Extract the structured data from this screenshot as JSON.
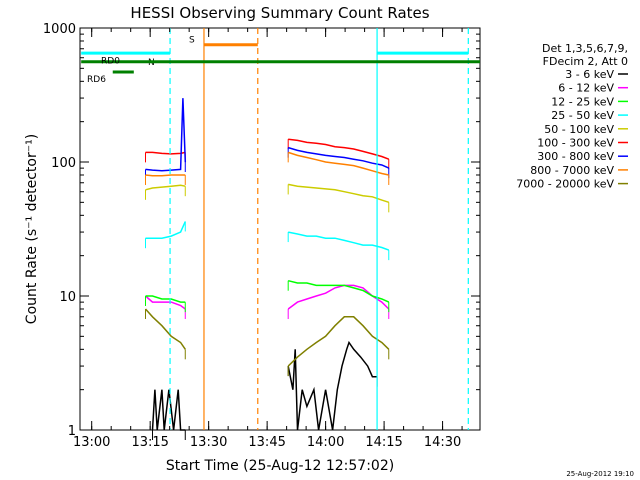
{
  "chart_data": {
    "type": "line",
    "title": "HESSI Observing Summary Count Rates",
    "ylabel": "Count Rate (s⁻¹ detector⁻¹)",
    "xlabel": "Start Time (25-Aug-12 12:57:02)",
    "yscale": "log",
    "ylim": [
      1,
      1000
    ],
    "xlim_min_utc": [
      12.95,
      14.66
    ],
    "x_ticks": [
      {
        "v": 13.0,
        "label": "13:00"
      },
      {
        "v": 13.25,
        "label": "13:15"
      },
      {
        "v": 13.5,
        "label": "13:30"
      },
      {
        "v": 13.75,
        "label": "13:45"
      },
      {
        "v": 14.0,
        "label": "14:00"
      },
      {
        "v": 14.25,
        "label": "14:15"
      },
      {
        "v": 14.5,
        "label": "14:30"
      }
    ],
    "y_ticks": [
      {
        "v": 1,
        "label": "1"
      },
      {
        "v": 10,
        "label": "10"
      },
      {
        "v": 100,
        "label": "100"
      },
      {
        "v": 1000,
        "label": "1000"
      }
    ],
    "legend": {
      "position": "top-right, outside plot",
      "header": [
        "Det 1,3,5,6,7,9,",
        "FDecim 2, Att 0"
      ]
    },
    "series": [
      {
        "name": "3 - 6 keV",
        "color": "#000000",
        "segments": [
          {
            "points": [
              [
                13.26,
                1
              ],
              [
                13.27,
                2
              ],
              [
                13.28,
                1
              ],
              [
                13.3,
                2
              ],
              [
                13.31,
                1
              ],
              [
                13.33,
                2
              ],
              [
                13.35,
                1
              ],
              [
                13.37,
                2
              ],
              [
                13.38,
                1
              ],
              [
                13.4,
                1
              ]
            ]
          },
          {
            "points": [
              [
                13.84,
                3
              ],
              [
                13.86,
                2
              ],
              [
                13.87,
                4
              ],
              [
                13.88,
                1
              ],
              [
                13.9,
                2
              ],
              [
                13.92,
                1.5
              ],
              [
                13.95,
                2
              ],
              [
                13.97,
                1
              ],
              [
                14.0,
                2
              ],
              [
                14.03,
                1
              ],
              [
                14.05,
                2
              ],
              [
                14.07,
                3
              ],
              [
                14.09,
                4
              ],
              [
                14.1,
                4.5
              ],
              [
                14.12,
                4
              ],
              [
                14.15,
                3.5
              ],
              [
                14.18,
                3
              ],
              [
                14.2,
                2.5
              ],
              [
                14.22,
                2.5
              ]
            ]
          }
        ]
      },
      {
        "name": "6 - 12 keV",
        "color": "#ff00ff",
        "segments": [
          {
            "points": [
              [
                13.23,
                10
              ],
              [
                13.26,
                9
              ],
              [
                13.3,
                9
              ],
              [
                13.34,
                9
              ],
              [
                13.38,
                8.5
              ],
              [
                13.4,
                8
              ]
            ]
          },
          {
            "points": [
              [
                13.84,
                8
              ],
              [
                13.88,
                9
              ],
              [
                13.92,
                9.5
              ],
              [
                13.96,
                10
              ],
              [
                14.0,
                10.5
              ],
              [
                14.04,
                11.5
              ],
              [
                14.08,
                12
              ],
              [
                14.12,
                12
              ],
              [
                14.16,
                11.5
              ],
              [
                14.2,
                10
              ],
              [
                14.24,
                9
              ],
              [
                14.27,
                8
              ]
            ]
          }
        ]
      },
      {
        "name": "12 - 25 keV",
        "color": "#00ff00",
        "segments": [
          {
            "points": [
              [
                13.23,
                10
              ],
              [
                13.26,
                10
              ],
              [
                13.3,
                9.5
              ],
              [
                13.34,
                9.5
              ],
              [
                13.38,
                9
              ],
              [
                13.4,
                9
              ]
            ]
          },
          {
            "points": [
              [
                13.84,
                13
              ],
              [
                13.88,
                12.5
              ],
              [
                13.92,
                12.5
              ],
              [
                13.96,
                12
              ],
              [
                14.0,
                12
              ],
              [
                14.04,
                12
              ],
              [
                14.08,
                12
              ],
              [
                14.12,
                11.5
              ],
              [
                14.16,
                11
              ],
              [
                14.2,
                10
              ],
              [
                14.24,
                9.5
              ],
              [
                14.27,
                9
              ]
            ]
          }
        ]
      },
      {
        "name": "25 - 50 keV",
        "color": "#00ffff",
        "segments": [
          {
            "points": [
              [
                13.23,
                27
              ],
              [
                13.26,
                27
              ],
              [
                13.3,
                27
              ],
              [
                13.34,
                28
              ],
              [
                13.38,
                30
              ],
              [
                13.4,
                36
              ]
            ]
          },
          {
            "points": [
              [
                13.84,
                30
              ],
              [
                13.88,
                29
              ],
              [
                13.92,
                28
              ],
              [
                13.96,
                28
              ],
              [
                14.0,
                27
              ],
              [
                14.04,
                27
              ],
              [
                14.08,
                26
              ],
              [
                14.12,
                25
              ],
              [
                14.16,
                24
              ],
              [
                14.2,
                24
              ],
              [
                14.24,
                23
              ],
              [
                14.27,
                22
              ]
            ]
          }
        ]
      },
      {
        "name": "50 - 100 keV",
        "color": "#cccc00",
        "segments": [
          {
            "points": [
              [
                13.23,
                62
              ],
              [
                13.26,
                64
              ],
              [
                13.3,
                65
              ],
              [
                13.34,
                66
              ],
              [
                13.38,
                67
              ],
              [
                13.4,
                66
              ]
            ]
          },
          {
            "points": [
              [
                13.84,
                68
              ],
              [
                13.88,
                66
              ],
              [
                13.92,
                65
              ],
              [
                13.96,
                64
              ],
              [
                14.0,
                63
              ],
              [
                14.04,
                62
              ],
              [
                14.08,
                60
              ],
              [
                14.12,
                58
              ],
              [
                14.16,
                56
              ],
              [
                14.2,
                55
              ],
              [
                14.24,
                52
              ],
              [
                14.27,
                50
              ]
            ]
          }
        ]
      },
      {
        "name": "100 - 300 keV",
        "color": "#ff0000",
        "segments": [
          {
            "points": [
              [
                13.23,
                118
              ],
              [
                13.26,
                118
              ],
              [
                13.3,
                116
              ],
              [
                13.34,
                115
              ],
              [
                13.38,
                116
              ],
              [
                13.4,
                118
              ]
            ]
          },
          {
            "points": [
              [
                13.84,
                148
              ],
              [
                13.88,
                145
              ],
              [
                13.92,
                140
              ],
              [
                13.96,
                138
              ],
              [
                14.0,
                135
              ],
              [
                14.04,
                130
              ],
              [
                14.08,
                128
              ],
              [
                14.12,
                125
              ],
              [
                14.16,
                120
              ],
              [
                14.2,
                115
              ],
              [
                14.24,
                110
              ],
              [
                14.27,
                105
              ]
            ]
          }
        ]
      },
      {
        "name": "300 - 800 keV",
        "color": "#0000ff",
        "segments": [
          {
            "points": [
              [
                13.23,
                88
              ],
              [
                13.26,
                87
              ],
              [
                13.3,
                86
              ],
              [
                13.34,
                87
              ],
              [
                13.38,
                88
              ],
              [
                13.39,
                300
              ],
              [
                13.4,
                100
              ]
            ]
          },
          {
            "points": [
              [
                13.84,
                128
              ],
              [
                13.88,
                122
              ],
              [
                13.92,
                118
              ],
              [
                13.96,
                115
              ],
              [
                14.0,
                112
              ],
              [
                14.04,
                110
              ],
              [
                14.08,
                108
              ],
              [
                14.12,
                105
              ],
              [
                14.16,
                102
              ],
              [
                14.2,
                98
              ],
              [
                14.24,
                95
              ],
              [
                14.27,
                90
              ]
            ]
          }
        ]
      },
      {
        "name": "800 - 7000 keV",
        "color": "#ff8000",
        "segments": [
          {
            "points": [
              [
                13.23,
                80
              ],
              [
                13.26,
                79
              ],
              [
                13.3,
                79
              ],
              [
                13.34,
                80
              ],
              [
                13.38,
                80
              ],
              [
                13.4,
                80
              ]
            ]
          },
          {
            "points": [
              [
                13.84,
                118
              ],
              [
                13.88,
                112
              ],
              [
                13.92,
                108
              ],
              [
                13.96,
                104
              ],
              [
                14.0,
                100
              ],
              [
                14.04,
                98
              ],
              [
                14.08,
                96
              ],
              [
                14.12,
                94
              ],
              [
                14.16,
                90
              ],
              [
                14.2,
                86
              ],
              [
                14.24,
                82
              ],
              [
                14.27,
                80
              ]
            ]
          }
        ]
      },
      {
        "name": "7000 - 20000 keV",
        "color": "#808000",
        "segments": [
          {
            "points": [
              [
                13.23,
                8
              ],
              [
                13.26,
                7
              ],
              [
                13.3,
                6
              ],
              [
                13.34,
                5
              ],
              [
                13.38,
                4.5
              ],
              [
                13.4,
                4
              ]
            ]
          },
          {
            "points": [
              [
                13.84,
                3
              ],
              [
                13.88,
                3.5
              ],
              [
                13.92,
                4
              ],
              [
                13.96,
                4.5
              ],
              [
                14.0,
                5
              ],
              [
                14.04,
                6
              ],
              [
                14.08,
                7
              ],
              [
                14.12,
                7
              ],
              [
                14.16,
                6
              ],
              [
                14.2,
                5
              ],
              [
                14.24,
                4.5
              ],
              [
                14.27,
                4
              ]
            ]
          }
        ]
      }
    ],
    "vlines": [
      {
        "x": 13.335,
        "color": "#00ffff",
        "dash": true
      },
      {
        "x": 13.48,
        "color": "#ff8000",
        "dash": false
      },
      {
        "x": 13.71,
        "color": "#ff8000",
        "dash": true
      },
      {
        "x": 14.22,
        "color": "#00ffff",
        "dash": false
      },
      {
        "x": 14.61,
        "color": "#00ffff",
        "dash": true
      }
    ],
    "flag_bars": [
      {
        "x0": 12.955,
        "x1": 13.335,
        "y": 650,
        "color": "#00ffff",
        "label": "N"
      },
      {
        "x0": 13.48,
        "x1": 13.71,
        "y": 750,
        "color": "#ff8000",
        "label": "S"
      },
      {
        "x0": 14.22,
        "x1": 14.61,
        "y": 650,
        "color": "#00ffff",
        "label": ""
      },
      {
        "x0": 12.955,
        "x1": 14.66,
        "y": 560,
        "color": "#008000",
        "label": "RD0"
      },
      {
        "x0": 13.09,
        "x1": 13.18,
        "y": 470,
        "color": "#008000",
        "label": "RD6"
      }
    ]
  },
  "footer": {
    "timestamp": "25-Aug-2012 19:10"
  }
}
